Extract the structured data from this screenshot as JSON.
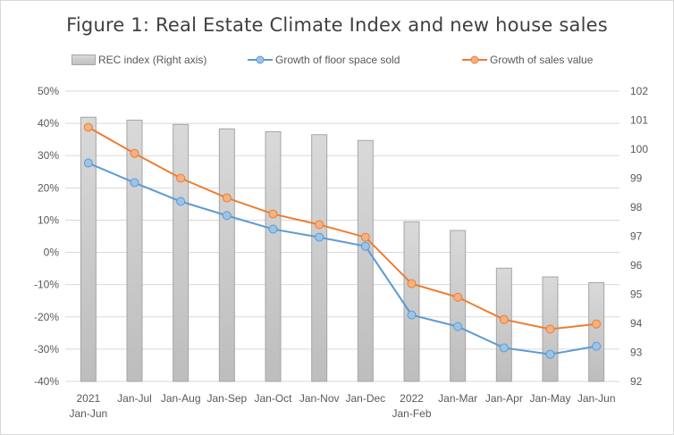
{
  "chart_data": {
    "type": "bar",
    "title": "Figure 1: Real Estate Climate Index and new house sales",
    "categories": [
      "2021\nJan-Jun",
      "Jan-Jul",
      "Jan-Aug",
      "Jan-Sep",
      "Jan-Oct",
      "Jan-Nov",
      "Jan-Dec",
      "2022\nJan-Feb",
      "Jan-Mar",
      "Jan-Apr",
      "Jan-May",
      "Jan-Jun"
    ],
    "category_lines": [
      [
        "2021",
        "Jan-Jun"
      ],
      [
        "Jan-Jul"
      ],
      [
        "Jan-Aug"
      ],
      [
        "Jan-Sep"
      ],
      [
        "Jan-Oct"
      ],
      [
        "Jan-Nov"
      ],
      [
        "Jan-Dec"
      ],
      [
        "2022",
        "Jan-Feb"
      ],
      [
        "Jan-Mar"
      ],
      [
        "Jan-Apr"
      ],
      [
        "Jan-May"
      ],
      [
        "Jan-Jun"
      ]
    ],
    "series": [
      {
        "name": "REC index (Right axis)",
        "type": "bar",
        "axis": "right",
        "color": "#c8c8c8",
        "values": [
          101.1,
          101.0,
          100.85,
          100.7,
          100.6,
          100.5,
          100.3,
          97.5,
          97.2,
          95.9,
          95.6,
          95.4
        ]
      },
      {
        "name": "Growth of floor space sold",
        "type": "line",
        "axis": "left",
        "color": "#5b9bd5",
        "values": [
          27.7,
          21.6,
          15.8,
          11.4,
          7.2,
          4.7,
          1.9,
          -19.4,
          -23.0,
          -29.6,
          -31.6,
          -29.1
        ]
      },
      {
        "name": "Growth of sales value",
        "type": "line",
        "axis": "left",
        "color": "#ed7d31",
        "values": [
          38.8,
          30.7,
          23.0,
          16.9,
          11.9,
          8.6,
          4.7,
          -9.7,
          -13.9,
          -20.8,
          -23.8,
          -22.2
        ]
      }
    ],
    "left_axis": {
      "ylim": [
        -40,
        50
      ],
      "ticks": [
        "50%",
        "40%",
        "30%",
        "20%",
        "10%",
        "0%",
        "-10%",
        "-20%",
        "-30%",
        "-40%"
      ],
      "tick_values": [
        50,
        40,
        30,
        20,
        10,
        0,
        -10,
        -20,
        -30,
        -40
      ]
    },
    "right_axis": {
      "ylim": [
        92,
        102
      ],
      "ticks": [
        "102",
        "101",
        "100",
        "99",
        "98",
        "97",
        "96",
        "95",
        "94",
        "93",
        "92"
      ],
      "tick_values": [
        102,
        101,
        100,
        99,
        98,
        97,
        96,
        95,
        94,
        93,
        92
      ]
    },
    "xlabel": "",
    "ylabel": "",
    "grid": true,
    "legend_position": "top"
  }
}
